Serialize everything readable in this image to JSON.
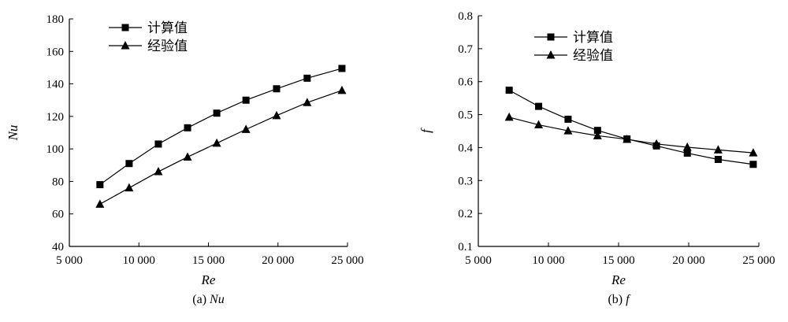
{
  "chart_data": [
    {
      "type": "line",
      "caption_prefix": "(a)",
      "caption_var": "Nu",
      "xlabel": "Re",
      "ylabel": "Nu",
      "xlim": [
        5000,
        25000
      ],
      "ylim": [
        40,
        180
      ],
      "x_ticks": [
        5000,
        10000,
        15000,
        20000,
        25000
      ],
      "x_tick_labels": [
        "5 000",
        "10 000",
        "15 000",
        "20 000",
        "25 000"
      ],
      "y_ticks": [
        40,
        60,
        80,
        100,
        120,
        140,
        160,
        180
      ],
      "y_tick_labels": [
        "40",
        "60",
        "80",
        "100",
        "120",
        "140",
        "160",
        "180"
      ],
      "grid": false,
      "legend_position": "top-left",
      "x": [
        7200,
        9300,
        11400,
        13500,
        15600,
        17700,
        19900,
        22100,
        24600
      ],
      "series": [
        {
          "name": "计算值",
          "marker": "square",
          "values": [
            78,
            91,
            103,
            113,
            122,
            130,
            137,
            143.5,
            149.5
          ]
        },
        {
          "name": "经验值",
          "marker": "triangle",
          "values": [
            66,
            76,
            86,
            95,
            103.5,
            112,
            120.5,
            128.5,
            136
          ]
        }
      ]
    },
    {
      "type": "line",
      "caption_prefix": "(b)",
      "caption_var": "f",
      "xlabel": "Re",
      "ylabel": "f",
      "xlim": [
        5000,
        25000
      ],
      "ylim": [
        0.1,
        0.8
      ],
      "x_ticks": [
        5000,
        10000,
        15000,
        20000,
        25000
      ],
      "x_tick_labels": [
        "5 000",
        "10 000",
        "15 000",
        "20 000",
        "25 000"
      ],
      "y_ticks": [
        0.1,
        0.2,
        0.3,
        0.4,
        0.5,
        0.6,
        0.7,
        0.8
      ],
      "y_tick_labels": [
        "0.1",
        "0.2",
        "0.3",
        "0.4",
        "0.5",
        "0.6",
        "0.7",
        "0.8"
      ],
      "grid": false,
      "legend_position": "top-left",
      "x": [
        7200,
        9300,
        11400,
        13500,
        15600,
        17700,
        19900,
        22100,
        24600
      ],
      "series": [
        {
          "name": "计算值",
          "marker": "square",
          "values": [
            0.574,
            0.525,
            0.486,
            0.452,
            0.426,
            0.405,
            0.383,
            0.364,
            0.349
          ]
        },
        {
          "name": "经验值",
          "marker": "triangle",
          "values": [
            0.492,
            0.469,
            0.451,
            0.436,
            0.425,
            0.411,
            0.401,
            0.393,
            0.384
          ]
        }
      ]
    }
  ]
}
